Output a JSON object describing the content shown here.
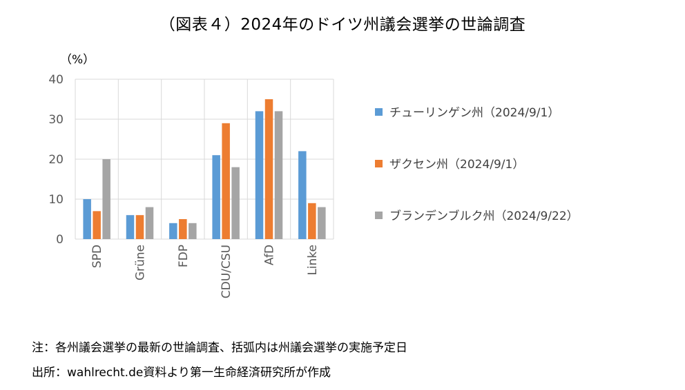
{
  "title": "（図表４）2024年のドイツ州議会選挙の世論調査",
  "chart_data": {
    "type": "bar",
    "ylabel": "（%）",
    "ylim": [
      0,
      40
    ],
    "yticks": [
      0,
      10,
      20,
      30,
      40
    ],
    "grid": true,
    "legend_position": "right",
    "categories": [
      "SPD",
      "Grüne",
      "FDP",
      "CDU/CSU",
      "AfD",
      "Linke"
    ],
    "series": [
      {
        "name": "チューリンゲン州（2024/9/1）",
        "color": "#5B9BD5",
        "values": [
          10,
          6,
          4,
          21,
          32,
          22
        ]
      },
      {
        "name": "ザクセン州（2024/9/1）",
        "color": "#ED7D31",
        "values": [
          7,
          6,
          5,
          29,
          35,
          9
        ]
      },
      {
        "name": "ブランデンブルク州（2024/9/22）",
        "color": "#A5A5A5",
        "values": [
          20,
          8,
          4,
          18,
          32,
          8
        ]
      }
    ]
  },
  "notes": {
    "note": "注：各州議会選挙の最新の世論調査、括弧内は州議会選挙の実施予定日",
    "source": "出所：wahlrecht.de資料より第一生命経済研究所が作成"
  }
}
